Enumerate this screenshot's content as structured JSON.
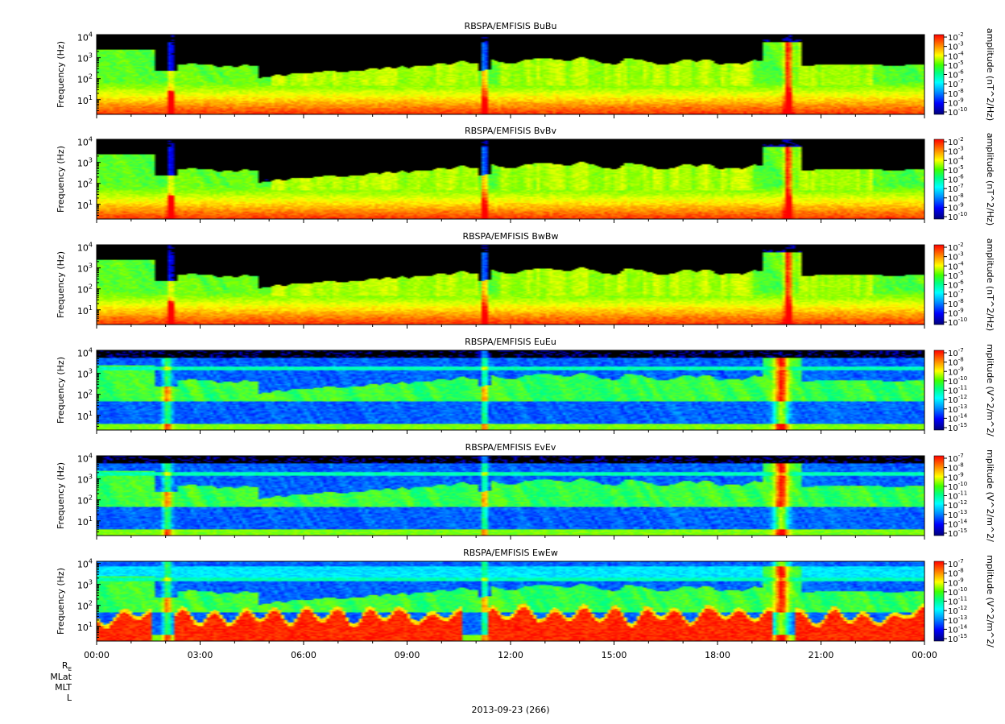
{
  "chart_data": [
    {
      "type": "heatmap",
      "title": "RBSPA/EMFISIS  BuBu",
      "ylabel": "Frequency (Hz)",
      "yscale": "log",
      "y_ticks": [
        "10",
        "10",
        "10",
        "10"
      ],
      "y_tick_exps": [
        "1",
        "2",
        "3",
        "4"
      ],
      "colorbar_label": "amplitude (nT^2/Hz)",
      "colorbar_ticks": [
        "10",
        "10",
        "10",
        "10",
        "10",
        "10",
        "10",
        "10",
        "10"
      ],
      "colorbar_exps": [
        "-2",
        "-3",
        "-4",
        "-5",
        "-6",
        "-7",
        "-8",
        "-9",
        "-10"
      ],
      "x_ticks": [
        "00:00",
        "03:00",
        "06:00",
        "09:00",
        "12:00",
        "15:00",
        "18:00",
        "21:00",
        "00:00"
      ]
    },
    {
      "type": "heatmap",
      "title": "RBSPA/EMFISIS  BvBv",
      "ylabel": "Frequency (Hz)",
      "yscale": "log",
      "y_ticks": [
        "10",
        "10",
        "10",
        "10"
      ],
      "y_tick_exps": [
        "1",
        "2",
        "3",
        "4"
      ],
      "colorbar_label": "amplitude (nT^2/Hz)",
      "colorbar_ticks": [
        "10",
        "10",
        "10",
        "10",
        "10",
        "10",
        "10",
        "10",
        "10"
      ],
      "colorbar_exps": [
        "-2",
        "-3",
        "-4",
        "-5",
        "-6",
        "-7",
        "-8",
        "-9",
        "-10"
      ],
      "x_ticks": [
        "00:00",
        "03:00",
        "06:00",
        "09:00",
        "12:00",
        "15:00",
        "18:00",
        "21:00",
        "00:00"
      ]
    },
    {
      "type": "heatmap",
      "title": "RBSPA/EMFISIS  BwBw",
      "ylabel": "Frequency (Hz)",
      "yscale": "log",
      "y_ticks": [
        "10",
        "10",
        "10",
        "10"
      ],
      "y_tick_exps": [
        "1",
        "2",
        "3",
        "4"
      ],
      "colorbar_label": "amplitude (nT^2/Hz)",
      "colorbar_ticks": [
        "10",
        "10",
        "10",
        "10",
        "10",
        "10",
        "10",
        "10",
        "10"
      ],
      "colorbar_exps": [
        "-2",
        "-3",
        "-4",
        "-5",
        "-6",
        "-7",
        "-8",
        "-9",
        "-10"
      ],
      "x_ticks": [
        "00:00",
        "03:00",
        "06:00",
        "09:00",
        "12:00",
        "15:00",
        "18:00",
        "21:00",
        "00:00"
      ]
    },
    {
      "type": "heatmap",
      "title": "RBSPA/EMFISIS  EuEu",
      "ylabel": "Frequency (Hz)",
      "yscale": "log",
      "y_ticks": [
        "10",
        "10",
        "10",
        "10"
      ],
      "y_tick_exps": [
        "1",
        "2",
        "3",
        "4"
      ],
      "colorbar_label": "mplitude (V^2/m^2/",
      "colorbar_ticks": [
        "10",
        "10",
        "10",
        "10",
        "10",
        "10",
        "10",
        "10",
        "10"
      ],
      "colorbar_exps": [
        "-7",
        "-8",
        "-9",
        "-10",
        "-11",
        "-12",
        "-13",
        "-14",
        "-15"
      ],
      "x_ticks": [
        "00:00",
        "03:00",
        "06:00",
        "09:00",
        "12:00",
        "15:00",
        "18:00",
        "21:00",
        "00:00"
      ]
    },
    {
      "type": "heatmap",
      "title": "RBSPA/EMFISIS  EvEv",
      "ylabel": "Frequency (Hz)",
      "yscale": "log",
      "y_ticks": [
        "10",
        "10",
        "10",
        "10"
      ],
      "y_tick_exps": [
        "1",
        "2",
        "3",
        "4"
      ],
      "colorbar_label": "mplitude (V^2/m^2/",
      "colorbar_ticks": [
        "10",
        "10",
        "10",
        "10",
        "10",
        "10",
        "10",
        "10",
        "10"
      ],
      "colorbar_exps": [
        "-7",
        "-8",
        "-9",
        "-10",
        "-11",
        "-12",
        "-13",
        "-14",
        "-15"
      ],
      "x_ticks": [
        "00:00",
        "03:00",
        "06:00",
        "09:00",
        "12:00",
        "15:00",
        "18:00",
        "21:00",
        "00:00"
      ]
    },
    {
      "type": "heatmap",
      "title": "RBSPA/EMFISIS  EwEw",
      "ylabel": "Frequency (Hz)",
      "yscale": "log",
      "y_ticks": [
        "10",
        "10",
        "10",
        "10"
      ],
      "y_tick_exps": [
        "1",
        "2",
        "3",
        "4"
      ],
      "colorbar_label": "mplitude (V^2/m^2/",
      "colorbar_ticks": [
        "10",
        "10",
        "10",
        "10",
        "10",
        "10",
        "10",
        "10",
        "10"
      ],
      "colorbar_exps": [
        "-7",
        "-8",
        "-9",
        "-10",
        "-11",
        "-12",
        "-13",
        "-14",
        "-15"
      ],
      "x_ticks": [
        "00:00",
        "03:00",
        "06:00",
        "09:00",
        "12:00",
        "15:00",
        "18:00",
        "21:00",
        "00:00"
      ]
    }
  ],
  "ephemeris_labels": [
    "R",
    "MLat",
    "MLT",
    "L"
  ],
  "ephemeris_re_subscript": "E",
  "date_label": "2013-09-23 (266)",
  "colormap": [
    "#000080",
    "#0000ff",
    "#0080ff",
    "#00ffff",
    "#00ff80",
    "#80ff00",
    "#ffff00",
    "#ff8000",
    "#ff0000"
  ]
}
